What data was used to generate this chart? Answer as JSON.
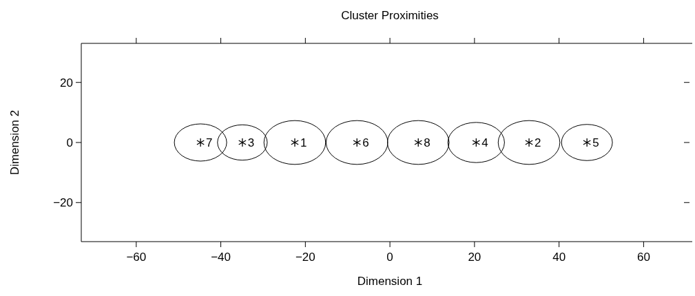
{
  "chart_data": {
    "type": "bubble",
    "title": "Cluster Proximities",
    "xlabel": "Dimension 1",
    "ylabel": "Dimension 2",
    "x": [
      -44.8,
      -34.9,
      -22.5,
      -7.8,
      6.7,
      20.4,
      32.9,
      46.6
    ],
    "values": [
      0,
      0,
      0,
      0,
      0,
      0,
      0,
      0
    ],
    "sizes": [
      0.72,
      0.65,
      1,
      1,
      1,
      0.84,
      1,
      0.68
    ],
    "annotations": [
      {
        "text": "7",
        "x": -44.8,
        "y": 0
      },
      {
        "text": "3",
        "x": -34.9,
        "y": 0
      },
      {
        "text": "1",
        "x": -22.5,
        "y": 0
      },
      {
        "text": "6",
        "x": -7.8,
        "y": 0
      },
      {
        "text": "8",
        "x": 6.7,
        "y": 0
      },
      {
        "text": "4",
        "x": 20.4,
        "y": 0
      },
      {
        "text": "2",
        "x": 32.9,
        "y": 0
      },
      {
        "text": "5",
        "x": 46.6,
        "y": 0
      }
    ],
    "marker": "cross",
    "color": "#000000",
    "xlim": [
      -73,
      71.5
    ],
    "xticks": [
      {
        "value": -60,
        "label": "−60"
      },
      {
        "value": -40,
        "label": "−40"
      },
      {
        "value": -20,
        "label": "−20"
      },
      0,
      20,
      40,
      60
    ],
    "ylim": [
      -33,
      33
    ],
    "yticks": [
      {
        "value": -20,
        "label": "−20"
      },
      0,
      20
    ],
    "grid": false
  }
}
